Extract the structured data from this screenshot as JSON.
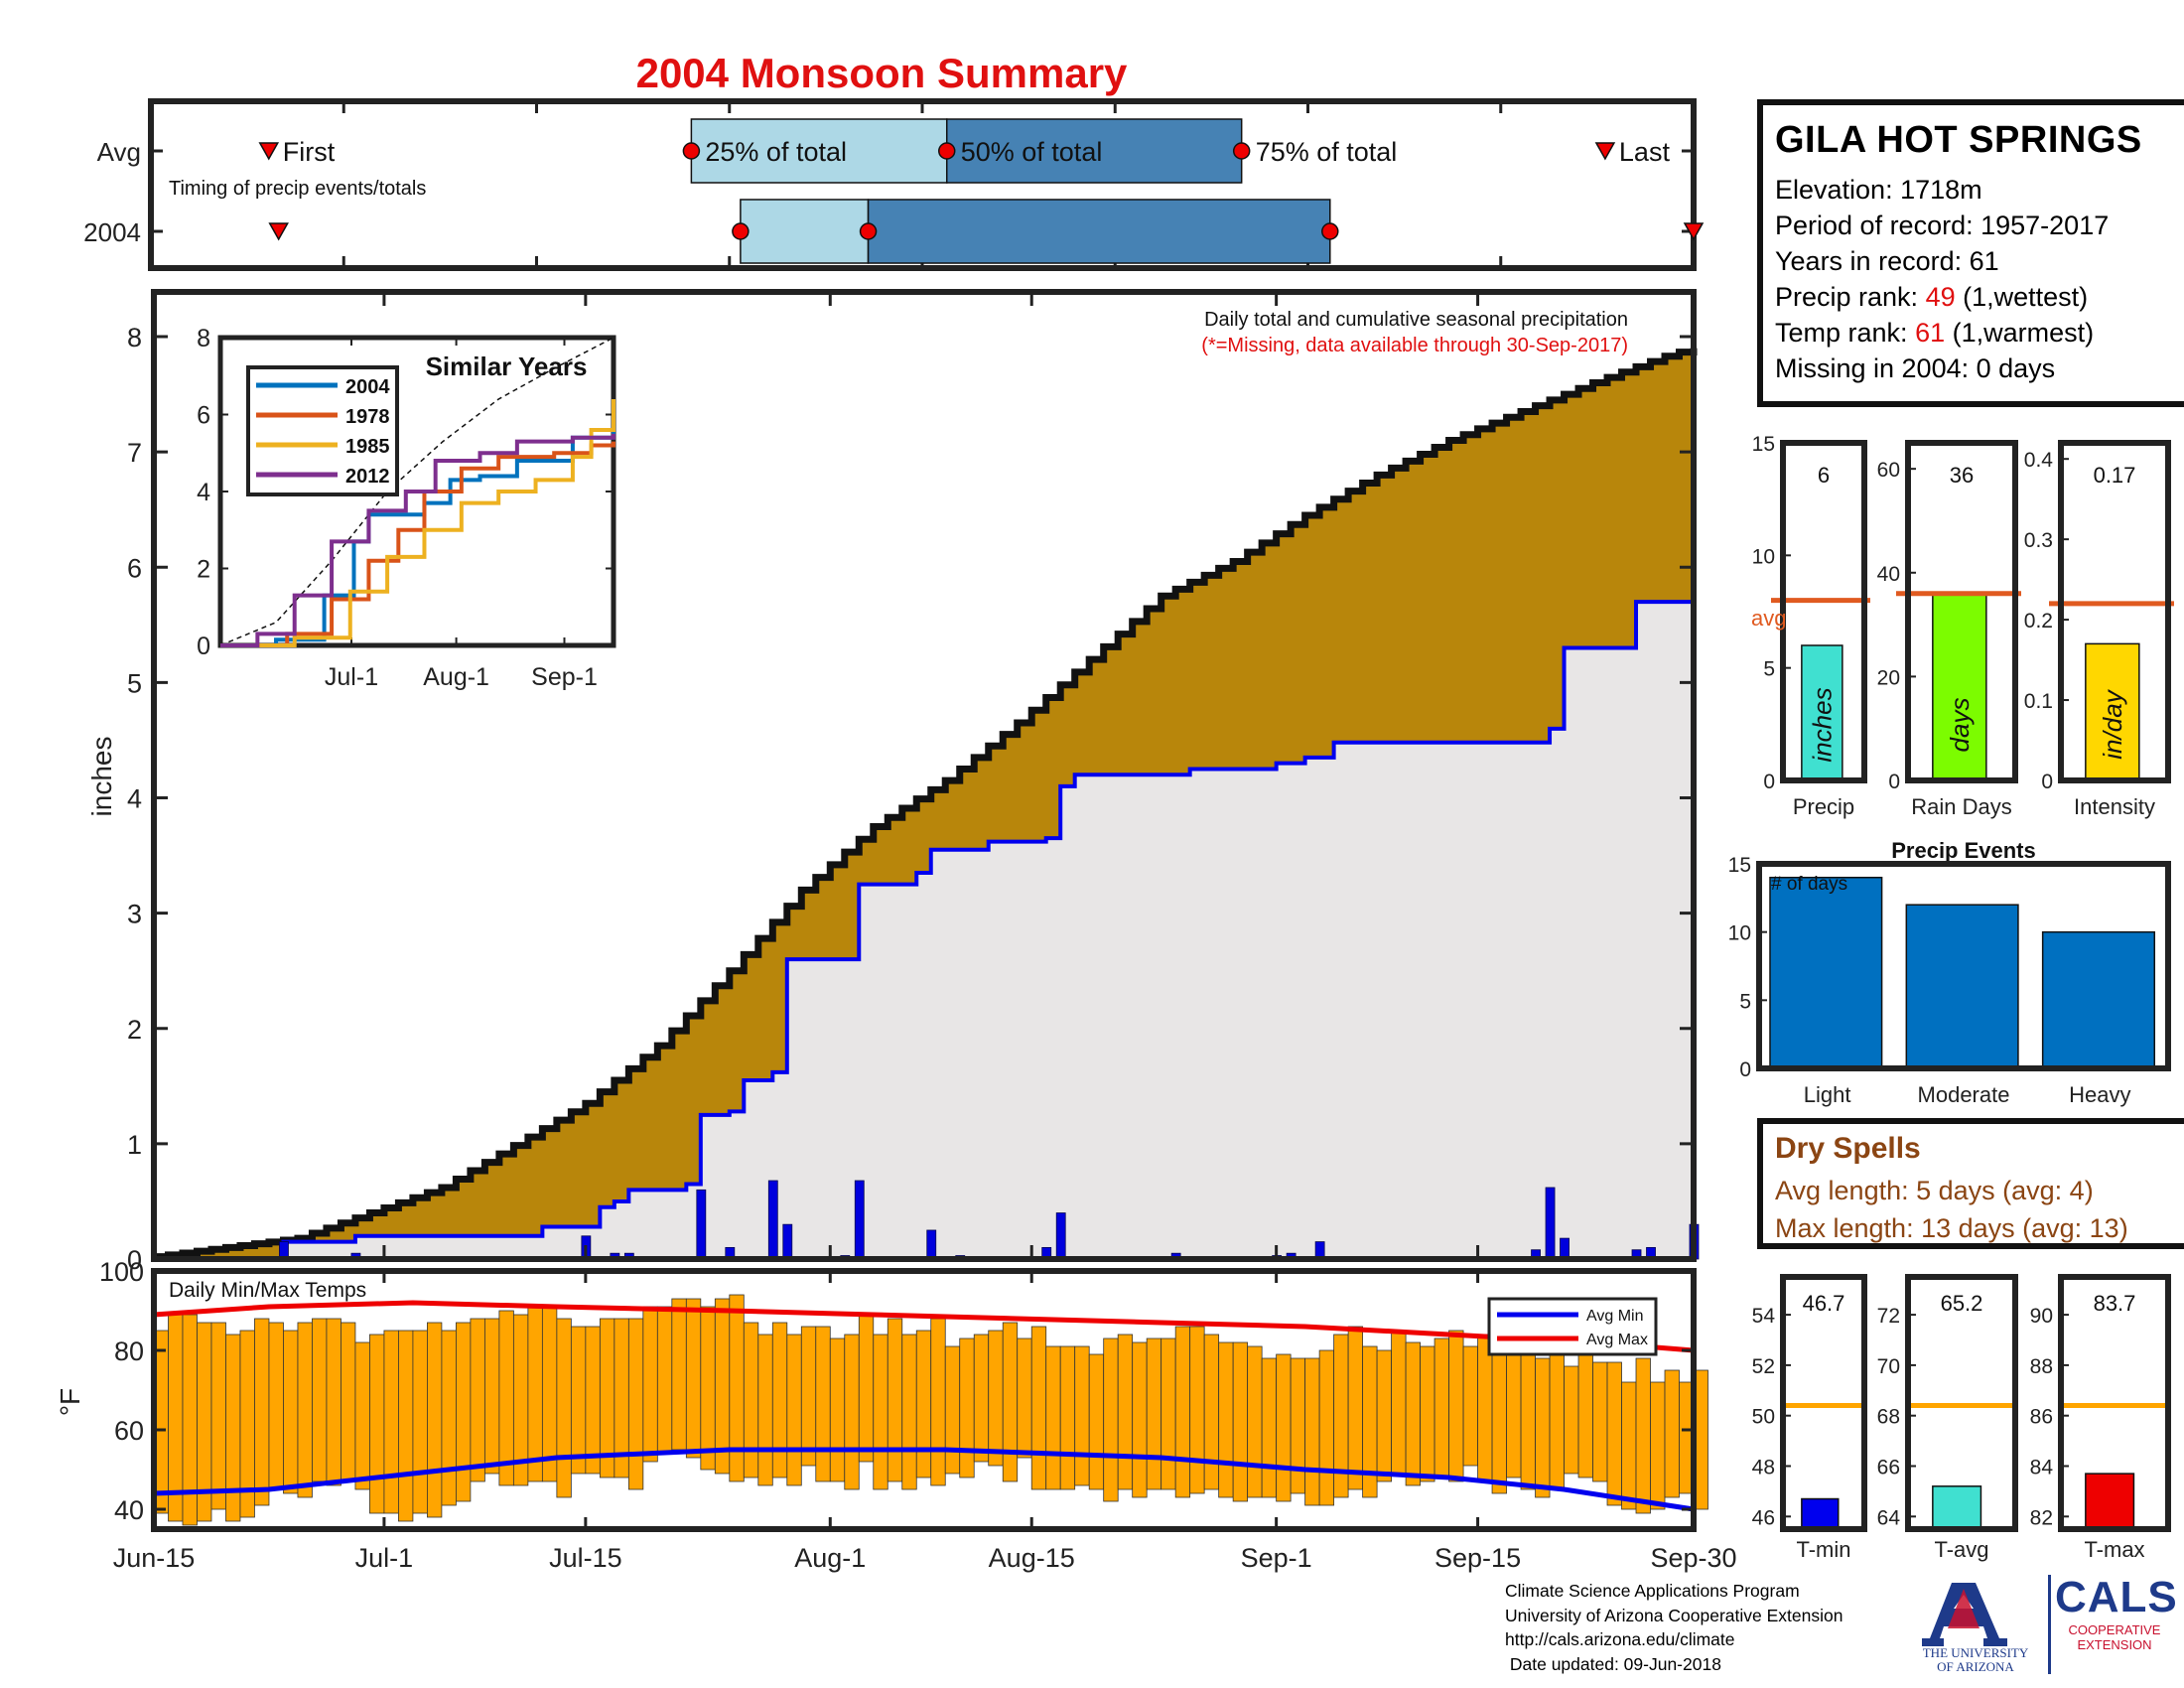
{
  "title": "2004 Monsoon Summary",
  "colors": {
    "title": "#e01010",
    "cumulative_fill": "#b8860b",
    "avg_fill": "#e8e6e6",
    "avg_line": "#0000ee",
    "daily_bar": "#0000dd",
    "temp_bar": "#ffa500",
    "avg_min_line": "#0000ee",
    "avg_max_line": "#ee0000",
    "avg_ref_line": "#e05a20",
    "temp_ref_line": "#ffa500",
    "light_blue": "#add8e6",
    "steel_blue": "#4682b4",
    "event_bar": "#0070c0"
  },
  "info": {
    "station": "GILA HOT SPRINGS",
    "elevation": "Elevation: 1718m",
    "period": "Period of record: 1957-2017",
    "years": "Years in record: 61",
    "precip_rank_label": "Precip rank: ",
    "precip_rank_value": "49",
    "precip_rank_note": " (1,wettest)",
    "temp_rank_label": "Temp rank: ",
    "temp_rank_value": "61",
    "temp_rank_note": " (1,warmest)",
    "missing": "Missing in 2004: 0 days"
  },
  "dry_spells": {
    "title": "Dry Spells",
    "avg_length": "Avg length: 5 days (avg: 4)",
    "max_length": "Max length: 13 days (avg: 13)"
  },
  "footer": {
    "line1": "Climate Science Applications Program",
    "line2": "University of Arizona Cooperative Extension",
    "line3": "http://cals.arizona.edu/climate",
    "line4": " Date updated: 09-Jun-2018"
  },
  "logos": {
    "ua_line1": "THE UNIVERSITY",
    "ua_line2": "OF ARIZONA",
    "cals": "CALS",
    "coop1": "COOPERATIVE",
    "coop2": "EXTENSION"
  },
  "chart_data": [
    {
      "type": "timeline",
      "rows": [
        "Avg",
        "2004"
      ],
      "note": "Timing of precip events/totals",
      "labels": {
        "first": "First",
        "q25": "25% of total",
        "q50": "50% of total",
        "q75": "75% of total",
        "last": "Last"
      },
      "x_range": [
        "Jun-15",
        "Sep-30"
      ],
      "avg": {
        "first_day": 12,
        "q25_day": 55,
        "q50_day": 81,
        "q75_day": 111,
        "last_day": 148
      },
      "y2004": {
        "first_day": 13,
        "q25_day": 60,
        "q50_day": 73,
        "q75_day": 120,
        "last_day": 157
      }
    },
    {
      "type": "area",
      "title": "Daily total and cumulative seasonal precipitation",
      "subtitle": "(*=Missing, data available through 30-Sep-2017)",
      "ylabel": "inches",
      "ylim": [
        0,
        8
      ],
      "yticks": [
        0,
        1,
        2,
        3,
        4,
        5,
        6,
        7,
        8
      ],
      "xticks": [
        {
          "day": 0,
          "label": "Jun-15"
        },
        {
          "day": 16,
          "label": "Jul-1"
        },
        {
          "day": 30,
          "label": "Jul-15"
        },
        {
          "day": 47,
          "label": "Aug-1"
        },
        {
          "day": 61,
          "label": "Aug-15"
        },
        {
          "day": 78,
          "label": "Sep-1"
        },
        {
          "day": 92,
          "label": "Sep-15"
        },
        {
          "day": 107,
          "label": "Sep-30"
        }
      ],
      "cumulative_avg": [
        [
          0,
          0.02
        ],
        [
          10,
          0.18
        ],
        [
          20,
          0.62
        ],
        [
          30,
          1.35
        ],
        [
          35,
          1.85
        ],
        [
          40,
          2.5
        ],
        [
          45,
          3.2
        ],
        [
          50,
          3.75
        ],
        [
          55,
          4.15
        ],
        [
          60,
          4.65
        ],
        [
          65,
          5.2
        ],
        [
          70,
          5.75
        ],
        [
          75,
          6.05
        ],
        [
          80,
          6.45
        ],
        [
          85,
          6.8
        ],
        [
          90,
          7.1
        ],
        [
          95,
          7.35
        ],
        [
          100,
          7.6
        ],
        [
          105,
          7.83
        ],
        [
          107,
          7.9
        ]
      ],
      "cumulative_2004": [
        [
          0,
          0.0
        ],
        [
          8,
          0.0
        ],
        [
          9,
          0.15
        ],
        [
          13,
          0.15
        ],
        [
          14,
          0.2
        ],
        [
          26,
          0.2
        ],
        [
          27,
          0.28
        ],
        [
          30,
          0.28
        ],
        [
          31,
          0.45
        ],
        [
          32,
          0.5
        ],
        [
          33,
          0.6
        ],
        [
          37,
          0.65
        ],
        [
          38,
          1.25
        ],
        [
          40,
          1.28
        ],
        [
          41,
          1.55
        ],
        [
          43,
          1.62
        ],
        [
          44,
          2.6
        ],
        [
          48,
          2.6
        ],
        [
          49,
          3.25
        ],
        [
          53,
          3.35
        ],
        [
          54,
          3.55
        ],
        [
          58,
          3.62
        ],
        [
          62,
          3.65
        ],
        [
          63,
          4.1
        ],
        [
          64,
          4.2
        ],
        [
          72,
          4.25
        ],
        [
          78,
          4.3
        ],
        [
          80,
          4.35
        ],
        [
          82,
          4.48
        ],
        [
          91,
          4.48
        ],
        [
          97,
          4.6
        ],
        [
          98,
          5.3
        ],
        [
          103,
          5.7
        ],
        [
          106,
          5.7
        ],
        [
          107,
          6.0
        ]
      ],
      "daily_2004": [
        [
          9,
          0.15
        ],
        [
          14,
          0.05
        ],
        [
          30,
          0.2
        ],
        [
          32,
          0.05
        ],
        [
          33,
          0.05
        ],
        [
          38,
          0.6
        ],
        [
          40,
          0.1
        ],
        [
          43,
          0.68
        ],
        [
          44,
          0.3
        ],
        [
          48,
          0.03
        ],
        [
          49,
          0.68
        ],
        [
          51,
          0.02
        ],
        [
          54,
          0.25
        ],
        [
          56,
          0.03
        ],
        [
          62,
          0.1
        ],
        [
          63,
          0.4
        ],
        [
          71,
          0.05
        ],
        [
          78,
          0.03
        ],
        [
          79,
          0.05
        ],
        [
          81,
          0.15
        ],
        [
          96,
          0.08
        ],
        [
          97,
          0.62
        ],
        [
          98,
          0.18
        ],
        [
          103,
          0.08
        ],
        [
          104,
          0.1
        ],
        [
          107,
          0.3
        ]
      ]
    },
    {
      "type": "line",
      "title": "Similar Years",
      "ylim": [
        0,
        8
      ],
      "yticks": [
        0,
        2,
        4,
        6,
        8
      ],
      "xticks": [
        "Jul-1",
        "Aug-1",
        "Sep-1"
      ],
      "series": [
        {
          "name": "2004",
          "color": "#0072bd",
          "points": [
            [
              0,
              0
            ],
            [
              15,
              0.15
            ],
            [
              28,
              1.3
            ],
            [
              36,
              2.7
            ],
            [
              40,
              3.4
            ],
            [
              55,
              3.7
            ],
            [
              62,
              4.3
            ],
            [
              70,
              4.4
            ],
            [
              80,
              4.8
            ],
            [
              95,
              5.4
            ],
            [
              106,
              6.2
            ]
          ]
        },
        {
          "name": "1978",
          "color": "#d95319",
          "points": [
            [
              0,
              0
            ],
            [
              18,
              0.3
            ],
            [
              30,
              1.2
            ],
            [
              40,
              2.2
            ],
            [
              48,
              3.0
            ],
            [
              55,
              4.0
            ],
            [
              65,
              4.6
            ],
            [
              75,
              4.9
            ],
            [
              90,
              5.0
            ],
            [
              100,
              5.2
            ],
            [
              106,
              5.3
            ]
          ]
        },
        {
          "name": "1985",
          "color": "#edb120",
          "points": [
            [
              0,
              0
            ],
            [
              20,
              0.2
            ],
            [
              35,
              1.4
            ],
            [
              45,
              2.3
            ],
            [
              55,
              3.0
            ],
            [
              65,
              3.7
            ],
            [
              75,
              4.0
            ],
            [
              85,
              4.3
            ],
            [
              95,
              4.9
            ],
            [
              100,
              5.6
            ],
            [
              106,
              6.4
            ]
          ]
        },
        {
          "name": "2012",
          "color": "#7e2f8e",
          "points": [
            [
              0,
              0
            ],
            [
              10,
              0.3
            ],
            [
              20,
              1.3
            ],
            [
              30,
              2.7
            ],
            [
              40,
              3.5
            ],
            [
              50,
              4.0
            ],
            [
              58,
              4.8
            ],
            [
              70,
              5.0
            ],
            [
              80,
              5.3
            ],
            [
              95,
              5.4
            ],
            [
              106,
              5.5
            ]
          ]
        }
      ],
      "average": [
        [
          0,
          0
        ],
        [
          15,
          0.6
        ],
        [
          30,
          2.2
        ],
        [
          45,
          4.0
        ],
        [
          60,
          5.3
        ],
        [
          75,
          6.4
        ],
        [
          90,
          7.2
        ],
        [
          106,
          8.0
        ]
      ]
    },
    {
      "type": "bar",
      "title": "Daily Min/Max Temps",
      "ylabel": "°F",
      "ylim": [
        35,
        100
      ],
      "yticks": [
        40,
        60,
        80,
        100
      ],
      "legend": [
        "Avg Min",
        "Avg Max"
      ],
      "avg_max": [
        [
          0,
          89
        ],
        [
          8,
          91
        ],
        [
          18,
          92
        ],
        [
          28,
          91
        ],
        [
          40,
          90
        ],
        [
          50,
          89
        ],
        [
          60,
          88
        ],
        [
          70,
          87
        ],
        [
          80,
          86
        ],
        [
          90,
          84
        ],
        [
          100,
          82
        ],
        [
          107,
          80
        ]
      ],
      "avg_min": [
        [
          0,
          44
        ],
        [
          8,
          45
        ],
        [
          18,
          49
        ],
        [
          28,
          53
        ],
        [
          40,
          55
        ],
        [
          55,
          55
        ],
        [
          70,
          53
        ],
        [
          80,
          50
        ],
        [
          90,
          48
        ],
        [
          98,
          45
        ],
        [
          107,
          40
        ]
      ],
      "min_values": [
        39,
        37,
        36,
        37,
        40,
        37,
        38,
        41,
        45,
        44,
        43,
        47,
        46,
        47,
        45,
        39,
        39,
        37,
        39,
        38,
        41,
        42,
        47,
        49,
        46,
        46,
        47,
        47,
        43,
        49,
        49,
        48,
        48,
        45,
        52,
        54,
        55,
        53,
        50,
        49,
        47,
        48,
        46,
        48,
        46,
        51,
        47,
        47,
        45,
        52,
        45,
        47,
        45,
        48,
        46,
        49,
        48,
        52,
        51,
        47,
        53,
        45,
        45,
        45,
        46,
        45,
        42,
        45,
        43,
        45,
        45,
        43,
        44,
        45,
        43,
        42,
        43,
        43,
        42,
        44,
        41,
        41,
        43,
        45,
        43,
        47,
        49,
        46,
        47,
        48,
        47,
        51,
        47,
        44,
        48,
        45,
        43,
        45,
        49,
        48,
        47,
        41,
        40,
        39,
        40,
        43,
        44,
        40
      ],
      "max_values": [
        85,
        89,
        89,
        87,
        87,
        84,
        85,
        88,
        87,
        85,
        87,
        88,
        88,
        87,
        82,
        84,
        85,
        85,
        85,
        87,
        85,
        87,
        88,
        88,
        90,
        89,
        91,
        91,
        88,
        86,
        86,
        88,
        88,
        88,
        91,
        91,
        93,
        93,
        91,
        93,
        94,
        87,
        84,
        87,
        84,
        86,
        86,
        83,
        84,
        89,
        84,
        88,
        84,
        85,
        88,
        81,
        83,
        84,
        85,
        87,
        83,
        86,
        81,
        81,
        81,
        79,
        83,
        84,
        82,
        83,
        83,
        86,
        86,
        84,
        82,
        82,
        81,
        78,
        79,
        78,
        78,
        80,
        84,
        86,
        81,
        80,
        85,
        82,
        81,
        83,
        85,
        81,
        84,
        83,
        83,
        84,
        78,
        84,
        76,
        82,
        77,
        77,
        72,
        78,
        72,
        75,
        72,
        75
      ]
    },
    {
      "type": "bar",
      "title": "Precip",
      "categories": [
        "Precip"
      ],
      "values": [
        6
      ],
      "value_label": "6",
      "average": 8,
      "avg_label": "avg",
      "unit": "inches",
      "ylim": [
        0,
        15
      ],
      "yticks": [
        0,
        5,
        10,
        15
      ]
    },
    {
      "type": "bar",
      "title": "Rain Days",
      "categories": [
        "Rain Days"
      ],
      "values": [
        36
      ],
      "value_label": "36",
      "average": 36,
      "unit": "days",
      "ylim": [
        0,
        65
      ],
      "yticks": [
        0,
        20,
        40,
        60
      ]
    },
    {
      "type": "bar",
      "title": "Intensity",
      "categories": [
        "Intensity"
      ],
      "values": [
        0.17
      ],
      "value_label": "0.17",
      "average": 0.22,
      "unit": "in/day",
      "ylim": [
        0,
        0.42
      ],
      "yticks": [
        0,
        0.1,
        0.2,
        0.3,
        0.4
      ]
    },
    {
      "type": "bar",
      "title": "Precip Events",
      "ylabel": "# of days",
      "categories": [
        "Light",
        "Moderate",
        "Heavy"
      ],
      "values": [
        14,
        12,
        10
      ],
      "ylim": [
        0,
        15
      ],
      "yticks": [
        0,
        5,
        10,
        15
      ]
    },
    {
      "type": "bar",
      "title": "T-min",
      "categories": [
        "T-min"
      ],
      "values": [
        46.7
      ],
      "value_label": "46.7",
      "average": 50.4,
      "ylim": [
        45.5,
        55.5
      ],
      "yticks": [
        46,
        48,
        50,
        52,
        54
      ]
    },
    {
      "type": "bar",
      "title": "T-avg",
      "categories": [
        "T-avg"
      ],
      "values": [
        65.2
      ],
      "value_label": "65.2",
      "average": 68.4,
      "ylim": [
        63.5,
        73.5
      ],
      "yticks": [
        64,
        66,
        68,
        70,
        72
      ]
    },
    {
      "type": "bar",
      "title": "T-max",
      "categories": [
        "T-max"
      ],
      "values": [
        83.7
      ],
      "value_label": "83.7",
      "average": 86.4,
      "ylim": [
        81.5,
        91.5
      ],
      "yticks": [
        82,
        84,
        86,
        88,
        90
      ]
    }
  ]
}
